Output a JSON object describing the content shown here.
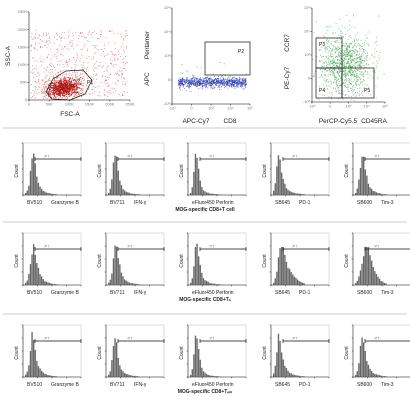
{
  "chart_data": [
    {
      "type": "scatter",
      "panel": "fsc-ssc",
      "xlabel": "FSC-A",
      "ylabel": "SSC-A",
      "x_ticks": [
        "0",
        "50K",
        "100K",
        "150K",
        "200K",
        "250K"
      ],
      "y_ticks": [
        "0",
        "50K",
        "100K",
        "150K",
        "200K",
        "250K"
      ],
      "gates": [
        {
          "label": "P1",
          "shape": "polygon"
        }
      ],
      "color": "#d03030",
      "highlight_color": "#b01010"
    },
    {
      "type": "scatter",
      "panel": "apc-cd8",
      "xlabel_a": "APC-Cy7",
      "xlabel_b": "CD8",
      "ylabel_a": "APC",
      "ylabel_b": "Pentamer",
      "x_ticks": [
        "-10³",
        "0",
        "10³",
        "10⁴",
        "10⁵"
      ],
      "y_ticks": [
        "-10³",
        "0",
        "10³",
        "10⁴",
        "10⁵"
      ],
      "gates": [
        {
          "label": "P2",
          "shape": "rect"
        }
      ],
      "color": "#2a3ab0"
    },
    {
      "type": "scatter",
      "panel": "cd45ra-ccr7",
      "xlabel_a": "PerCP-Cy5.5",
      "xlabel_b": "CD45RA",
      "ylabel_a": "PE-Cy7",
      "ylabel_b": "CCR7",
      "x_ticks": [
        "-10³",
        "0",
        "10³",
        "10⁴",
        "10⁵"
      ],
      "y_ticks": [
        "-10³",
        "0",
        "10³",
        "10⁴",
        "10⁵"
      ],
      "gates": [
        {
          "label": "P3"
        },
        {
          "label": "P4"
        },
        {
          "label": "P5"
        }
      ],
      "color": "#3a9a4a"
    }
  ],
  "histogram_rows": [
    {
      "title": "MOG-specific CD8+T cell",
      "panels": [
        {
          "channel": "BV510",
          "marker": "Granzyme B",
          "profile": [
            0.05,
            0.1,
            0.2,
            0.55,
            0.9,
            1.0,
            0.7,
            0.45,
            0.3,
            0.2,
            0.15,
            0.1,
            0.08,
            0.06,
            0.05,
            0.04,
            0.03,
            0.03,
            0.02,
            0.02
          ]
        },
        {
          "channel": "BV711",
          "marker": "IFN-γ",
          "profile": [
            0.05,
            0.15,
            0.4,
            0.75,
            1.0,
            0.85,
            0.55,
            0.35,
            0.25,
            0.15,
            0.1,
            0.08,
            0.06,
            0.05,
            0.04,
            0.03,
            0.03,
            0.02,
            0.02,
            0.02
          ]
        },
        {
          "channel": "eFluor450",
          "marker": "Perforin",
          "profile": [
            0.05,
            0.2,
            0.6,
            1.0,
            0.9,
            0.6,
            0.35,
            0.2,
            0.12,
            0.08,
            0.06,
            0.05,
            0.04,
            0.03,
            0.03,
            0.02,
            0.02,
            0.02,
            0.01,
            0.01
          ]
        },
        {
          "channel": "SB645",
          "marker": "PD-1",
          "profile": [
            0.1,
            0.3,
            0.7,
            1.0,
            0.8,
            0.55,
            0.35,
            0.25,
            0.18,
            0.12,
            0.1,
            0.08,
            0.06,
            0.05,
            0.04,
            0.04,
            0.03,
            0.03,
            0.02,
            0.02
          ]
        },
        {
          "channel": "SB600",
          "marker": "Tim-3",
          "profile": [
            0.05,
            0.15,
            0.35,
            0.7,
            1.0,
            0.9,
            0.65,
            0.45,
            0.3,
            0.2,
            0.14,
            0.1,
            0.08,
            0.06,
            0.05,
            0.04,
            0.03,
            0.02,
            0.02,
            0.02
          ]
        }
      ]
    },
    {
      "title": "MOG-specific CD8+Tₙ",
      "panels": [
        {
          "channel": "BV510",
          "marker": "Granzyme B",
          "profile": [
            0.05,
            0.1,
            0.25,
            0.5,
            0.8,
            1.0,
            0.8,
            0.55,
            0.4,
            0.28,
            0.2,
            0.14,
            0.1,
            0.08,
            0.06,
            0.05,
            0.04,
            0.03,
            0.02,
            0.02
          ]
        },
        {
          "channel": "BV711",
          "marker": "IFN-γ",
          "profile": [
            0.05,
            0.12,
            0.3,
            0.6,
            0.95,
            1.0,
            0.7,
            0.45,
            0.3,
            0.2,
            0.14,
            0.1,
            0.08,
            0.06,
            0.05,
            0.04,
            0.03,
            0.03,
            0.02,
            0.02
          ]
        },
        {
          "channel": "eFluor450",
          "marker": "Perforin",
          "profile": [
            0.05,
            0.15,
            0.45,
            0.85,
            1.0,
            0.75,
            0.45,
            0.28,
            0.18,
            0.12,
            0.09,
            0.07,
            0.05,
            0.04,
            0.03,
            0.03,
            0.02,
            0.02,
            0.02,
            0.01
          ]
        },
        {
          "channel": "SB645",
          "marker": "PD-1",
          "profile": [
            0.05,
            0.15,
            0.35,
            0.65,
            0.9,
            1.0,
            0.85,
            0.7,
            0.55,
            0.45,
            0.38,
            0.3,
            0.25,
            0.2,
            0.16,
            0.12,
            0.1,
            0.08,
            0.06,
            0.05
          ]
        },
        {
          "channel": "SB600",
          "marker": "Tim-3",
          "profile": [
            0.05,
            0.1,
            0.2,
            0.35,
            0.55,
            0.75,
            0.9,
            1.0,
            0.85,
            0.7,
            0.55,
            0.45,
            0.35,
            0.28,
            0.2,
            0.15,
            0.1,
            0.08,
            0.05,
            0.04
          ]
        }
      ]
    },
    {
      "title": "MOG-specific CD8+Tₑₘ",
      "panels": [
        {
          "channel": "BV510",
          "marker": "Granzyme B",
          "profile": [
            0.05,
            0.12,
            0.3,
            0.65,
            1.0,
            0.9,
            0.6,
            0.4,
            0.28,
            0.2,
            0.14,
            0.1,
            0.08,
            0.06,
            0.05,
            0.04,
            0.03,
            0.02,
            0.02,
            0.02
          ]
        },
        {
          "channel": "BV711",
          "marker": "IFN-γ",
          "profile": [
            0.05,
            0.15,
            0.4,
            0.8,
            1.0,
            0.8,
            0.5,
            0.3,
            0.2,
            0.14,
            0.1,
            0.08,
            0.06,
            0.05,
            0.04,
            0.03,
            0.03,
            0.02,
            0.02,
            0.01
          ]
        },
        {
          "channel": "eFluor450",
          "marker": "Perforin",
          "profile": [
            0.05,
            0.2,
            0.55,
            0.95,
            1.0,
            0.7,
            0.4,
            0.24,
            0.15,
            0.1,
            0.07,
            0.05,
            0.04,
            0.03,
            0.03,
            0.02,
            0.02,
            0.02,
            0.01,
            0.01
          ]
        },
        {
          "channel": "SB645",
          "marker": "PD-1",
          "profile": [
            0.08,
            0.25,
            0.6,
            1.0,
            0.85,
            0.6,
            0.4,
            0.28,
            0.2,
            0.14,
            0.1,
            0.08,
            0.06,
            0.05,
            0.04,
            0.03,
            0.03,
            0.02,
            0.02,
            0.02
          ]
        },
        {
          "channel": "SB600",
          "marker": "Tim-3",
          "profile": [
            0.05,
            0.15,
            0.35,
            0.7,
            1.0,
            0.85,
            0.6,
            0.42,
            0.3,
            0.2,
            0.14,
            0.1,
            0.08,
            0.06,
            0.05,
            0.04,
            0.03,
            0.02,
            0.02,
            0.02
          ]
        }
      ]
    }
  ],
  "histogram_axis": {
    "ylabel": "Count",
    "gate_label": "P7",
    "y_ticks": [
      "0",
      "20",
      "40",
      "60",
      "80"
    ],
    "x_ticks": [
      "-10³",
      "0",
      "10³",
      "10⁴",
      "10⁵"
    ]
  }
}
